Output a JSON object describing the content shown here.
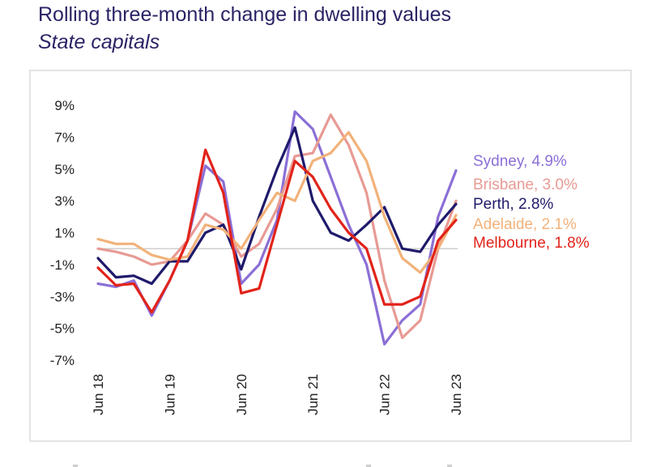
{
  "page": {
    "title": "Rolling three-month change in dwelling values",
    "subtitle": "State capitals"
  },
  "chart_data": {
    "type": "line",
    "title": "Rolling three-month change in dwelling values",
    "subtitle": "State capitals",
    "xlabel": "",
    "ylabel": "",
    "x_start": "Jun 18",
    "x_end": "Jun 23",
    "x_tick_labels": [
      "Jun 18",
      "Jun 19",
      "Jun 20",
      "Jun 21",
      "Jun 22",
      "Jun 23"
    ],
    "y_tick_labels": [
      "9%",
      "7%",
      "5%",
      "3%",
      "1%",
      "-1%",
      "-3%",
      "-5%",
      "-7%"
    ],
    "ylim": [
      -7,
      9
    ],
    "zero_line": true,
    "grid": false,
    "series": [
      {
        "name": "Sydney",
        "label": "Sydney, 4.9%",
        "latest": "4.9%",
        "color": "#8b6fd6",
        "x": [
          "Jun 18",
          "Sep 18",
          "Dec 18",
          "Mar 19",
          "Jun 19",
          "Sep 19",
          "Dec 19",
          "Mar 20",
          "Jun 20",
          "Sep 20",
          "Dec 20",
          "Mar 21",
          "Jun 21",
          "Sep 21",
          "Dec 21",
          "Mar 22",
          "Jun 22",
          "Sep 22",
          "Dec 22",
          "Mar 23",
          "Jun 23"
        ],
        "values": [
          -2.2,
          -2.4,
          -2.0,
          -4.2,
          -2.0,
          0.5,
          5.2,
          4.2,
          -2.2,
          -1.0,
          1.8,
          8.6,
          7.5,
          4.5,
          1.5,
          -1.0,
          -6.0,
          -4.5,
          -3.5,
          2.0,
          4.9
        ]
      },
      {
        "name": "Brisbane",
        "label": "Brisbane, 3.0%",
        "latest": "3.0%",
        "color": "#e89a94",
        "x": [
          "Jun 18",
          "Sep 18",
          "Dec 18",
          "Mar 19",
          "Jun 19",
          "Sep 19",
          "Dec 19",
          "Mar 20",
          "Jun 20",
          "Sep 20",
          "Dec 20",
          "Mar 21",
          "Jun 21",
          "Sep 21",
          "Dec 21",
          "Mar 22",
          "Jun 22",
          "Sep 22",
          "Dec 22",
          "Mar 23",
          "Jun 23"
        ],
        "values": [
          0.0,
          -0.2,
          -0.5,
          -1.0,
          -0.8,
          0.5,
          2.2,
          1.5,
          -0.5,
          0.3,
          2.5,
          5.8,
          6.0,
          8.4,
          6.5,
          3.5,
          -2.0,
          -5.6,
          -4.5,
          0.0,
          3.0
        ]
      },
      {
        "name": "Perth",
        "label": "Perth, 2.8%",
        "latest": "2.8%",
        "color": "#1f1a6b",
        "x": [
          "Jun 18",
          "Sep 18",
          "Dec 18",
          "Mar 19",
          "Jun 19",
          "Sep 19",
          "Dec 19",
          "Mar 20",
          "Jun 20",
          "Sep 20",
          "Dec 20",
          "Mar 21",
          "Jun 21",
          "Sep 21",
          "Dec 21",
          "Mar 22",
          "Jun 22",
          "Sep 22",
          "Dec 22",
          "Mar 23",
          "Jun 23"
        ],
        "values": [
          -0.6,
          -1.8,
          -1.7,
          -2.2,
          -0.8,
          -0.8,
          1.0,
          1.5,
          -1.3,
          2.0,
          5.0,
          7.6,
          3.0,
          1.0,
          0.5,
          1.5,
          2.6,
          0.0,
          -0.2,
          1.5,
          2.8
        ]
      },
      {
        "name": "Adelaide",
        "label": "Adelaide, 2.1%",
        "latest": "2.1%",
        "color": "#f2b27a",
        "x": [
          "Jun 18",
          "Sep 18",
          "Dec 18",
          "Mar 19",
          "Jun 19",
          "Sep 19",
          "Dec 19",
          "Mar 20",
          "Jun 20",
          "Sep 20",
          "Dec 20",
          "Mar 21",
          "Jun 21",
          "Sep 21",
          "Dec 21",
          "Mar 22",
          "Jun 22",
          "Sep 22",
          "Dec 22",
          "Mar 23",
          "Jun 23"
        ],
        "values": [
          0.6,
          0.3,
          0.3,
          -0.4,
          -0.7,
          -0.5,
          1.5,
          1.2,
          0.0,
          1.8,
          3.5,
          3.0,
          5.5,
          6.0,
          7.3,
          5.5,
          2.0,
          -0.6,
          -1.5,
          0.0,
          2.1
        ]
      },
      {
        "name": "Melbourne",
        "label": "Melbourne, 1.8%",
        "latest": "1.8%",
        "color": "#e2231a",
        "x": [
          "Jun 18",
          "Sep 18",
          "Dec 18",
          "Mar 19",
          "Jun 19",
          "Sep 19",
          "Dec 19",
          "Mar 20",
          "Jun 20",
          "Sep 20",
          "Dec 20",
          "Mar 21",
          "Jun 21",
          "Sep 21",
          "Dec 21",
          "Mar 22",
          "Jun 22",
          "Sep 22",
          "Dec 22",
          "Mar 23",
          "Jun 23"
        ],
        "values": [
          -1.2,
          -2.3,
          -2.2,
          -4.0,
          -2.0,
          0.5,
          6.2,
          3.5,
          -2.8,
          -2.5,
          1.5,
          5.5,
          4.5,
          2.5,
          1.0,
          0.0,
          -3.5,
          -3.5,
          -3.0,
          0.5,
          1.8
        ]
      }
    ]
  }
}
